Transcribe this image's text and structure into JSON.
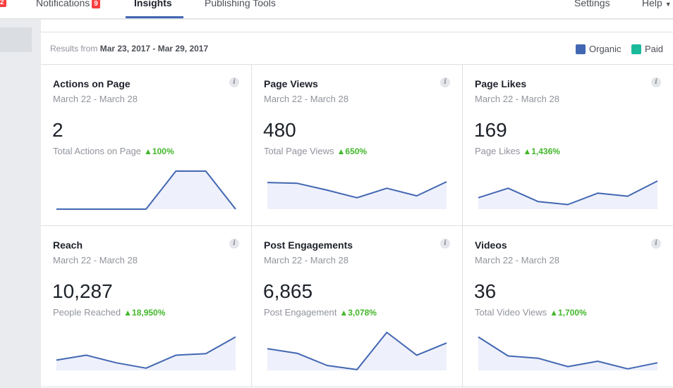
{
  "nav": {
    "page_badge": "2",
    "notifications_label": "Notifications",
    "notifications_count": "9",
    "insights_label": "Insights",
    "publishing_tools_label": "Publishing Tools",
    "settings_label": "Settings",
    "help_label": "Help"
  },
  "results": {
    "prefix": "Results from",
    "range": "Mar 23, 2017 - Mar 29, 2017"
  },
  "legend": {
    "organic_label": "Organic",
    "paid_label": "Paid",
    "organic_color": "#4267b2",
    "paid_color": "#19b99a"
  },
  "cards": [
    {
      "title": "Actions on Page",
      "range": "March 22 - March 28",
      "value": "2",
      "sub_label": "Total Actions on Page",
      "change": "100%",
      "spark": [
        0,
        0,
        0,
        0,
        1,
        1,
        0
      ]
    },
    {
      "title": "Page Views",
      "range": "March 22 - March 28",
      "value": "480",
      "sub_label": "Total Page Views",
      "change": "650%",
      "spark": [
        0.7,
        0.68,
        0.5,
        0.3,
        0.55,
        0.35,
        0.72
      ]
    },
    {
      "title": "Page Likes",
      "range": "March 22 - March 28",
      "value": "169",
      "sub_label": "Page Likes",
      "change": "1,436%",
      "spark": [
        0.3,
        0.55,
        0.2,
        0.12,
        0.42,
        0.34,
        0.74
      ]
    },
    {
      "title": "Reach",
      "range": "March 22 - March 28",
      "value": "10,287",
      "sub_label": "People Reached",
      "change": "18,950%",
      "spark": [
        0.27,
        0.4,
        0.2,
        0.06,
        0.4,
        0.44,
        0.88
      ]
    },
    {
      "title": "Post Engagements",
      "range": "March 22 - March 28",
      "value": "6,865",
      "sub_label": "Post Engagement",
      "change": "3,078%",
      "spark": [
        0.57,
        0.45,
        0.13,
        0.02,
        1.0,
        0.4,
        0.72
      ]
    },
    {
      "title": "Videos",
      "range": "March 22 - March 28",
      "value": "36",
      "sub_label": "Total Video Views",
      "change": "1,700%",
      "spark": [
        0.88,
        0.38,
        0.32,
        0.1,
        0.24,
        0.04,
        0.2
      ]
    }
  ]
}
